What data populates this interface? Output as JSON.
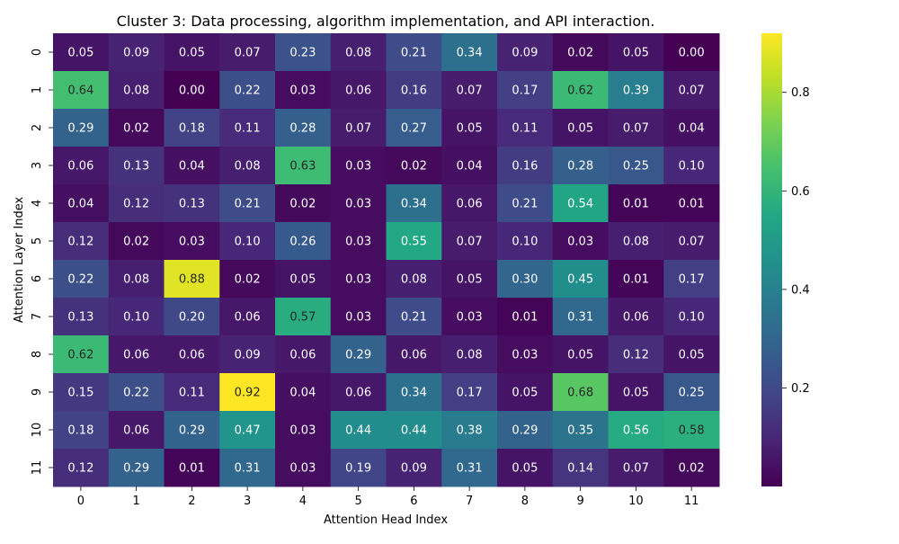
{
  "chart_data": {
    "type": "heatmap",
    "title": "Cluster 3: Data processing, algorithm implementation, and API interaction.",
    "xlabel": "Attention Head Index",
    "ylabel": "Attention Layer Index",
    "x_categories": [
      "0",
      "1",
      "2",
      "3",
      "4",
      "5",
      "6",
      "7",
      "8",
      "9",
      "10",
      "11"
    ],
    "y_categories": [
      "0",
      "1",
      "2",
      "3",
      "4",
      "5",
      "6",
      "7",
      "8",
      "9",
      "10",
      "11"
    ],
    "values": [
      [
        0.05,
        0.09,
        0.05,
        0.07,
        0.23,
        0.08,
        0.21,
        0.34,
        0.09,
        0.02,
        0.05,
        0.0
      ],
      [
        0.64,
        0.08,
        0.0,
        0.22,
        0.03,
        0.06,
        0.16,
        0.07,
        0.17,
        0.62,
        0.39,
        0.07
      ],
      [
        0.29,
        0.02,
        0.18,
        0.11,
        0.28,
        0.07,
        0.27,
        0.05,
        0.11,
        0.05,
        0.07,
        0.04
      ],
      [
        0.06,
        0.13,
        0.04,
        0.08,
        0.63,
        0.03,
        0.02,
        0.04,
        0.16,
        0.28,
        0.25,
        0.1
      ],
      [
        0.04,
        0.12,
        0.13,
        0.21,
        0.02,
        0.03,
        0.34,
        0.06,
        0.21,
        0.54,
        0.01,
        0.01
      ],
      [
        0.12,
        0.02,
        0.03,
        0.1,
        0.26,
        0.03,
        0.55,
        0.07,
        0.1,
        0.03,
        0.08,
        0.07
      ],
      [
        0.22,
        0.08,
        0.88,
        0.02,
        0.05,
        0.03,
        0.08,
        0.05,
        0.3,
        0.45,
        0.01,
        0.17
      ],
      [
        0.13,
        0.1,
        0.2,
        0.06,
        0.57,
        0.03,
        0.21,
        0.03,
        0.01,
        0.31,
        0.06,
        0.1
      ],
      [
        0.62,
        0.06,
        0.06,
        0.09,
        0.06,
        0.29,
        0.06,
        0.08,
        0.03,
        0.05,
        0.12,
        0.05
      ],
      [
        0.15,
        0.22,
        0.11,
        0.92,
        0.04,
        0.06,
        0.34,
        0.17,
        0.05,
        0.68,
        0.05,
        0.25
      ],
      [
        0.18,
        0.06,
        0.29,
        0.47,
        0.03,
        0.44,
        0.44,
        0.38,
        0.29,
        0.35,
        0.56,
        0.58
      ],
      [
        0.12,
        0.29,
        0.01,
        0.31,
        0.03,
        0.19,
        0.09,
        0.31,
        0.05,
        0.14,
        0.07,
        0.02
      ]
    ],
    "colormap": "viridis",
    "vmin": 0.0,
    "vmax": 0.92,
    "colorbar_ticks": [
      0.2,
      0.4,
      0.6,
      0.8
    ],
    "annotations_format": "0.00",
    "grid": false
  }
}
